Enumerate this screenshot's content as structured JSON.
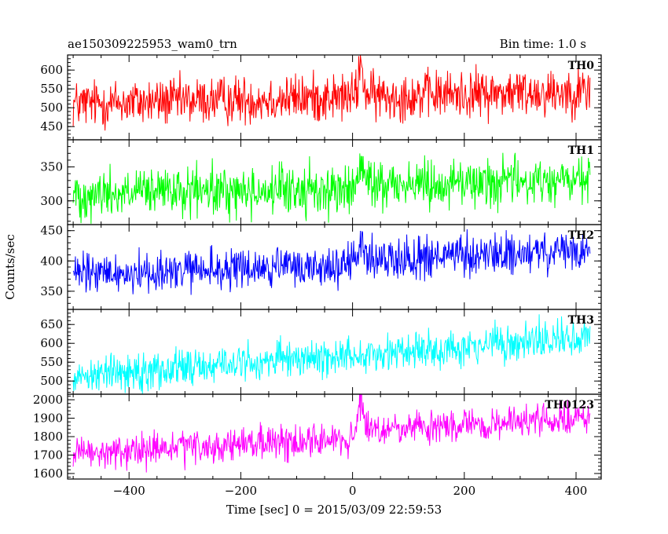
{
  "header": {
    "title": "ae150309225953_wam0_trn",
    "bin_time": "Bin time: 1.0 s"
  },
  "chart_data": {
    "type": "line",
    "xlabel": "Time [sec] 0 = 2015/03/09 22:59:53",
    "ylabel": "Counts/sec",
    "xlim": [
      -510,
      445
    ],
    "x_ticks": [
      -400,
      -200,
      0,
      200,
      400
    ],
    "x_range": [
      -500,
      425
    ],
    "bin_time_s": 1.0,
    "panels": [
      {
        "name": "TH0",
        "color": "#ff0000",
        "ylim": [
          415,
          640
        ],
        "y_ticks": [
          450,
          500,
          550,
          600
        ],
        "level_start": 510,
        "level_end": 545,
        "noise": 32,
        "step_at": 0,
        "step_size": 0,
        "burst_center": 15,
        "burst_amp": 80
      },
      {
        "name": "TH1",
        "color": "#00ff00",
        "ylim": [
          265,
          390
        ],
        "y_ticks": [
          300,
          350
        ],
        "level_start": 310,
        "level_end": 322,
        "noise": 18,
        "step_at": 15,
        "step_size": 8,
        "burst_center": 15,
        "burst_amp": 30
      },
      {
        "name": "TH2",
        "color": "#0000ff",
        "ylim": [
          320,
          460
        ],
        "y_ticks": [
          350,
          400,
          450
        ],
        "level_start": 377,
        "level_end": 405,
        "noise": 17,
        "step_at": 0,
        "step_size": 10,
        "burst_center": 15,
        "burst_amp": 25
      },
      {
        "name": "TH3",
        "color": "#00ffff",
        "ylim": [
          465,
          690
        ],
        "y_ticks": [
          500,
          550,
          600,
          650
        ],
        "level_start": 515,
        "level_end": 615,
        "noise": 25,
        "step_at": 0,
        "step_size": 0,
        "burst_center": 15,
        "burst_amp": 0
      },
      {
        "name": "TH0123",
        "color": "#ff00ff",
        "ylim": [
          1570,
          2030
        ],
        "y_ticks": [
          1600,
          1700,
          1800,
          1900,
          2000
        ],
        "level_start": 1700,
        "level_end": 1870,
        "noise": 45,
        "step_at": 15,
        "step_size": 30,
        "burst_center": 15,
        "burst_amp": 200
      }
    ]
  }
}
